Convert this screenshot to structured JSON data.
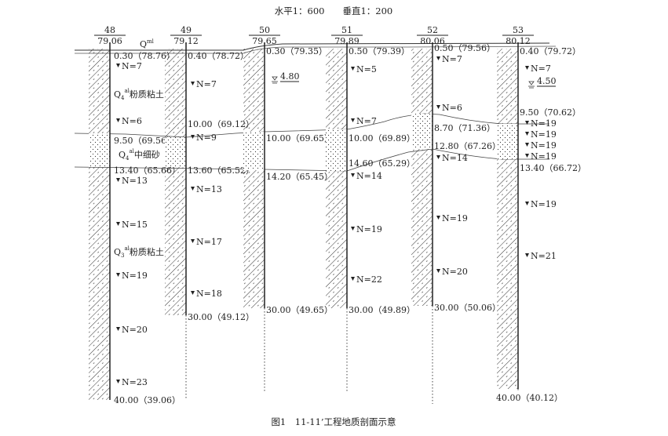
{
  "scale_label": "水平1：600　　垂直1：200",
  "caption": "图1　11-11’工程地质剖面示意",
  "fill_label": {
    "base": "Q",
    "sup": "ml"
  },
  "layer_labels": [
    {
      "base": "Q",
      "sub": "4",
      "sup": "al",
      "name": "粉质粘土"
    },
    {
      "base": "Q",
      "sub": "4",
      "sup": "al",
      "name": "中细砂"
    },
    {
      "base": "Q",
      "sub": "3",
      "sup": "al",
      "name": "粉质粘土"
    }
  ],
  "boreholes": [
    {
      "id": "48",
      "elevation": "79.06",
      "labels": [
        "0.30（78.76）",
        "N=7",
        "N=6",
        "9.50（69.56）",
        "13.40（65.66）",
        "N=13",
        "N=15",
        "N=19",
        "N=20",
        "N=23",
        "40.00（39.06）"
      ]
    },
    {
      "id": "49",
      "elevation": "79.12",
      "labels": [
        "0.40（78.72）",
        "N=7",
        "10.00（69.12）",
        "N=9",
        "13.60（65.52）",
        "N=13",
        "N=17",
        "N=18",
        "30.00（49.12）"
      ]
    },
    {
      "id": "50",
      "elevation": "79.65",
      "labels": [
        "0.30（79.35）",
        "4.80",
        "10.00（69.65）",
        "14.20（65.45）",
        "30.00（49.65）"
      ]
    },
    {
      "id": "51",
      "elevation": "79.89",
      "labels": [
        "0.50（79.39）",
        "N=5",
        "N=7",
        "10.00（69.89）",
        "14.60（65.29）",
        "N=14",
        "N=19",
        "N=22",
        "30.00（49.89）"
      ]
    },
    {
      "id": "52",
      "elevation": "80.06",
      "labels": [
        "0.50（79.56）",
        "N=7",
        "N=6",
        "8.70（71.36）",
        "12.80（67.26）",
        "N=14",
        "N=19",
        "N=20",
        "30.00（50.06）"
      ]
    },
    {
      "id": "53",
      "elevation": "80.12",
      "labels": [
        "0.40（79.72）",
        "N=7",
        "4.50",
        "9.50（70.62）",
        "N=19",
        "N=19",
        "N=19",
        "N=19",
        "13.40（66.72）",
        "N=19",
        "N=21",
        "40.00（40.12）"
      ]
    }
  ]
}
